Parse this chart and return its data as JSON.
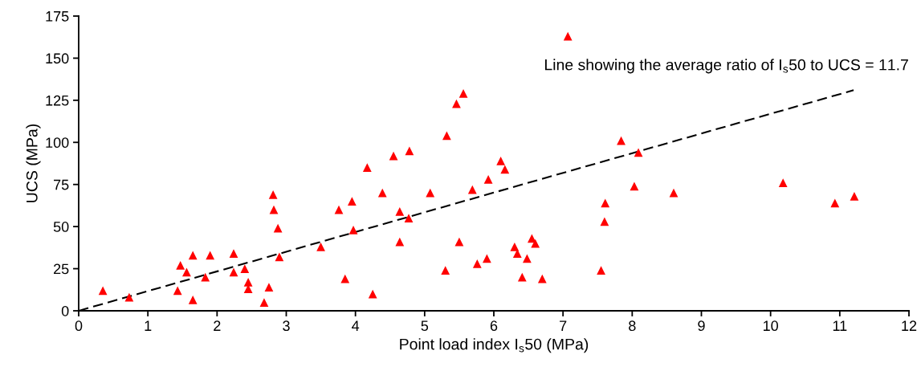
{
  "chart_data": {
    "type": "scatter",
    "xlabel": "Point load index I$_{s}$50 (MPa)",
    "ylabel": "UCS (MPa)",
    "xlim": [
      0,
      12
    ],
    "xticks": [
      0,
      1,
      2,
      3,
      4,
      5,
      6,
      7,
      8,
      9,
      10,
      11,
      12
    ],
    "ylim": [
      0,
      175
    ],
    "yticks": [
      0,
      25,
      50,
      75,
      100,
      125,
      150,
      175
    ],
    "grid": false,
    "legend": false,
    "annotations": [
      "Line showing the average ratio of I$_{s}$50 to UCS = 11.7"
    ],
    "series": [
      {
        "color": "#ff0000",
        "marker": "triangle",
        "x": [
          0.35,
          0.73,
          1.43,
          1.47,
          1.56,
          1.65,
          1.65,
          1.83,
          1.9,
          2.24,
          2.24,
          2.4,
          2.45,
          2.45,
          2.68,
          2.75,
          2.81,
          2.82,
          2.88,
          2.9,
          3.5,
          3.76,
          3.85,
          3.95,
          3.97,
          4.17,
          4.25,
          4.39,
          4.55,
          4.64,
          4.64,
          4.77,
          4.78,
          5.08,
          5.3,
          5.32,
          5.46,
          5.5,
          5.56,
          5.69,
          5.76,
          5.9,
          5.92,
          6.1,
          6.16,
          6.3,
          6.34,
          6.41,
          6.48,
          6.55,
          6.6,
          6.7,
          7.07,
          7.55,
          7.6,
          7.61,
          7.84,
          8.03,
          8.09,
          8.6,
          10.18,
          10.93,
          11.21
        ],
        "values": [
          12,
          8,
          12,
          27,
          23,
          33,
          6.5,
          20,
          33,
          34,
          23,
          25,
          17,
          13,
          5,
          14,
          69,
          60,
          49,
          32,
          38,
          60,
          19,
          65,
          48,
          85,
          10,
          70,
          92,
          59,
          41,
          55,
          95,
          70,
          24,
          104,
          123,
          41,
          129,
          72,
          28,
          31,
          78,
          89,
          84,
          38,
          34,
          20,
          31,
          43,
          40,
          19,
          163,
          24,
          53,
          64,
          101,
          74,
          94,
          70,
          76,
          64,
          68
        ]
      },
      {
        "type": "line",
        "color": "#000000",
        "line_style": "dashed",
        "marker": "none",
        "x": [
          0,
          11.2
        ],
        "values": [
          0,
          131
        ]
      }
    ]
  }
}
